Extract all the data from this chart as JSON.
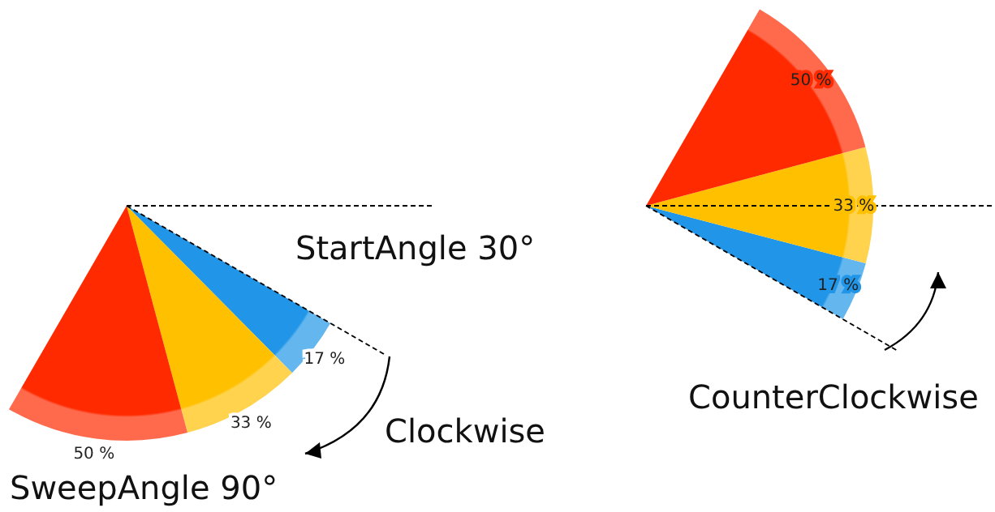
{
  "chart_data": [
    {
      "type": "pie",
      "categories": [
        null,
        null,
        null
      ],
      "values": [
        17,
        33,
        50
      ],
      "colors": [
        "#2196e8",
        "#ffc000",
        "#ff2a00"
      ],
      "value_labels": [
        "17 %",
        "33 %",
        "50 %"
      ],
      "annotations": [
        "StartAngle 30°",
        "Clockwise",
        "SweepAngle 90°"
      ]
    },
    {
      "type": "pie",
      "categories": [
        null,
        null,
        null
      ],
      "values": [
        17,
        33,
        50
      ],
      "colors": [
        "#2196e8",
        "#ffc000",
        "#ff2a00"
      ],
      "value_labels": [
        "17 %",
        "33 %",
        "50 %"
      ],
      "annotations": [
        "CounterClockwise"
      ]
    }
  ]
}
